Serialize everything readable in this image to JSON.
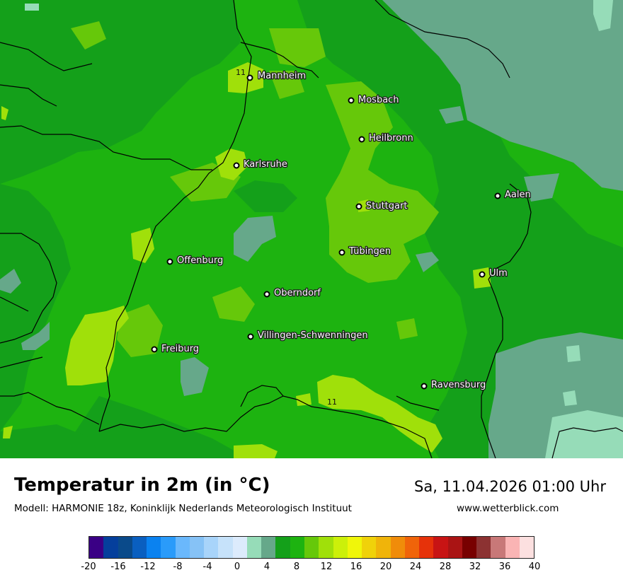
{
  "map": {
    "cities": [
      {
        "name": "Mannheim"
      },
      {
        "name": "Mosbach"
      },
      {
        "name": "Heilbronn"
      },
      {
        "name": "Karlsruhe"
      },
      {
        "name": "Aalen"
      },
      {
        "name": "Stuttgart"
      },
      {
        "name": "Offenburg"
      },
      {
        "name": "Tübingen"
      },
      {
        "name": "Ulm"
      },
      {
        "name": "Oberndorf"
      },
      {
        "name": "Villingen-Schwenningen"
      },
      {
        "name": "Freiburg"
      },
      {
        "name": "Ravensburg"
      }
    ],
    "contour_labels": [
      "11",
      "11"
    ]
  },
  "footer": {
    "title": "Temperatur in 2m (in °C)",
    "subtitle": "Modell: HARMONIE 18z, Koninklijk Nederlands Meteorologisch Instituut",
    "datetime": "Sa, 11.04.2026 01:00 Uhr",
    "website": "www.wetterblick.com"
  },
  "scale": {
    "colors": [
      "#3a0085",
      "#053f9c",
      "#0a4a8a",
      "#0a5fc0",
      "#0a82f0",
      "#2a9bfa",
      "#6ab8fc",
      "#86c2f6",
      "#a8d4fa",
      "#c6e2fa",
      "#dcebfc",
      "#96dcb8",
      "#66a88a",
      "#14a01a",
      "#1db310",
      "#66c80a",
      "#a0e00a",
      "#ccf00a",
      "#f0f60a",
      "#f0d20a",
      "#f0b40a",
      "#f08c0a",
      "#f0640a",
      "#e6320a",
      "#c81414",
      "#aa1414",
      "#780000",
      "#8c3232",
      "#c87878",
      "#fab4b4",
      "#fce0e0"
    ],
    "tick_labels": [
      "-20",
      "-16",
      "-12",
      "-8",
      "-4",
      "0",
      "4",
      "8",
      "12",
      "16",
      "20",
      "24",
      "28",
      "32",
      "36",
      "40"
    ]
  }
}
